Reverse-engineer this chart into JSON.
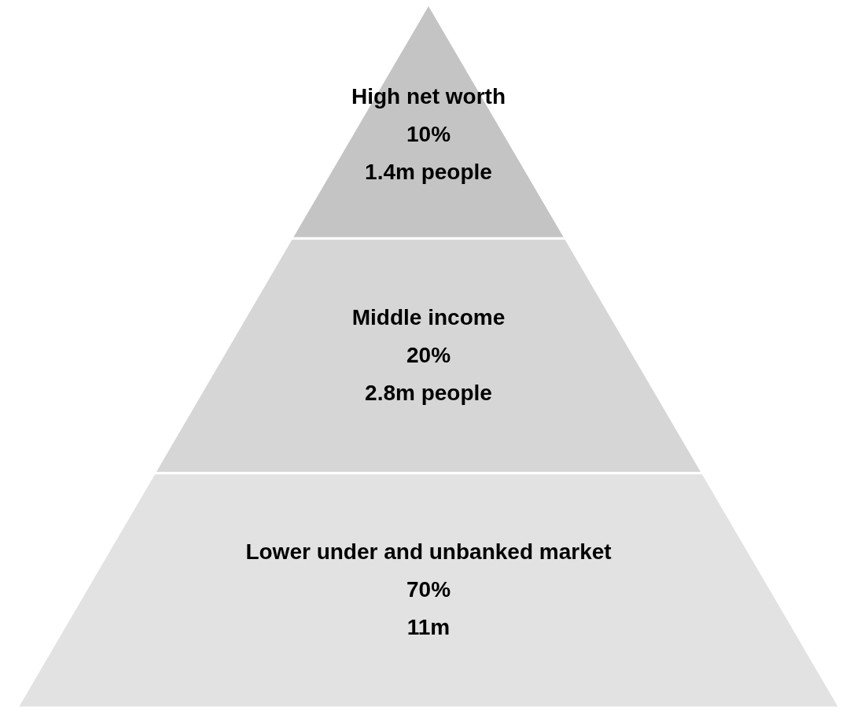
{
  "chart_data": {
    "type": "other",
    "categories": [
      "High net worth",
      "Middle income",
      "Lower under and unbanked market"
    ],
    "values": [
      10,
      20,
      70
    ],
    "value_labels": [
      "10%",
      "20%",
      "70%"
    ],
    "colors": [
      "#c4c4c4",
      "#d6d6d6",
      "#e2e2e2"
    ],
    "annotations": [
      {
        "text": "1.4m people",
        "x": "High net worth"
      },
      {
        "text": "2.8m people",
        "x": "Middle income"
      },
      {
        "text": "11m",
        "x": "Lower under and unbanked market"
      }
    ]
  }
}
